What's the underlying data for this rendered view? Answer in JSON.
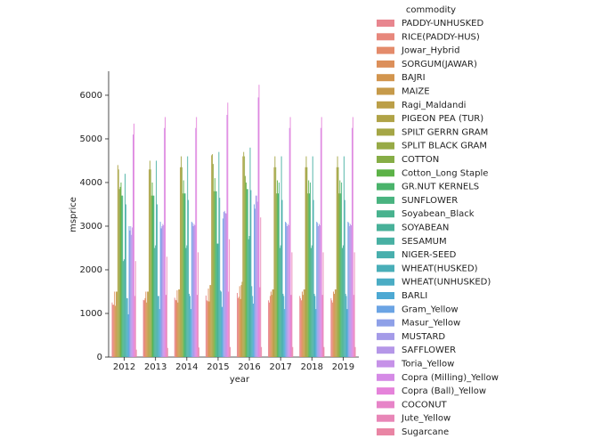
{
  "chart_data": {
    "type": "bar",
    "x_label": "year",
    "y_label": "msprice",
    "legend_title": "commodity",
    "legend_position": "right",
    "categories": [
      "2012",
      "2013",
      "2014",
      "2015",
      "2016",
      "2017",
      "2018",
      "2019"
    ],
    "ylim": [
      0,
      6550
    ],
    "yticks": [
      0,
      1000,
      2000,
      3000,
      4000,
      5000,
      6000
    ],
    "series": [
      {
        "name": "PADDY-UNHUSKED",
        "color": "#e8868f",
        "values": [
          1250,
          1310,
          1360,
          1410,
          1470,
          1300,
          1400,
          1350
        ]
      },
      {
        "name": "RICE(PADDY-HUS)",
        "color": "#e7877c",
        "values": [
          1200,
          1300,
          1310,
          1300,
          1350,
          1250,
          1350,
          1300
        ]
      },
      {
        "name": "Jowar_Hybrid",
        "color": "#e48b6b",
        "values": [
          1200,
          1350,
          1300,
          1280,
          1380,
          1400,
          1300,
          1250
        ]
      },
      {
        "name": "SORGUM(JAWAR)",
        "color": "#dc8f5a",
        "values": [
          1500,
          1500,
          1530,
          1570,
          1625,
          1500,
          1500,
          1500
        ]
      },
      {
        "name": "BAJRI",
        "color": "#d2954e",
        "values": [
          1175,
          1250,
          1250,
          1275,
          1330,
          1425,
          1425,
          1450
        ]
      },
      {
        "name": "MAIZE",
        "color": "#c69a4a",
        "values": [
          1500,
          1500,
          1550,
          1650,
          1650,
          1550,
          1550,
          1550
        ]
      },
      {
        "name": "Ragi_Maldandi",
        "color": "#bb9f48",
        "values": [
          1500,
          1500,
          1550,
          1650,
          1725,
          1550,
          1550,
          1550
        ]
      },
      {
        "name": "PIGEON PEA (TUR)",
        "color": "#b0a347",
        "values": [
          4400,
          4300,
          4350,
          4625,
          4600,
          4350,
          4350,
          4350
        ]
      },
      {
        "name": "SPILT GERRN GRAM",
        "color": "#a5a646",
        "values": [
          4300,
          4500,
          4600,
          4650,
          4700,
          4600,
          4600,
          4600
        ]
      },
      {
        "name": "SPLIT BLACK GRAM",
        "color": "#97aa46",
        "values": [
          3850,
          4300,
          4350,
          4425,
          4600,
          4350,
          4350,
          4350
        ]
      },
      {
        "name": "COTTON",
        "color": "#86ad46",
        "values": [
          3900,
          3700,
          3750,
          3800,
          4150,
          3750,
          3750,
          3750
        ]
      },
      {
        "name": "Cotton_Long Staple",
        "color": "#5cb247",
        "values": [
          4000,
          4000,
          4050,
          4100,
          4000,
          4050,
          4050,
          4050
        ]
      },
      {
        "name": "GR.NUT KERNELS",
        "color": "#4ab36b",
        "values": [
          3700,
          3700,
          3750,
          3800,
          3850,
          3750,
          3750,
          3750
        ]
      },
      {
        "name": "SUNFLOWER",
        "color": "#49b380",
        "values": [
          3700,
          3700,
          3750,
          3800,
          3850,
          4000,
          4000,
          4000
        ]
      },
      {
        "name": "Soyabean_Black",
        "color": "#48b28e",
        "values": [
          2200,
          2500,
          2500,
          2600,
          2700,
          2500,
          2500,
          2500
        ]
      },
      {
        "name": "SOYABEAN",
        "color": "#48b199",
        "values": [
          2240,
          2560,
          2560,
          2600,
          2775,
          2560,
          2560,
          2560
        ]
      },
      {
        "name": "SESAMUM",
        "color": "#48b0a3",
        "values": [
          4200,
          4500,
          4600,
          4700,
          4800,
          4600,
          4600,
          4600
        ]
      },
      {
        "name": "NIGER-SEED",
        "color": "#48afad",
        "values": [
          3500,
          3500,
          3600,
          3650,
          3825,
          3600,
          3600,
          3600
        ]
      },
      {
        "name": "WHEAT(HUSKED)",
        "color": "#49aeb8",
        "values": [
          1350,
          1400,
          1450,
          1525,
          1625,
          1450,
          1450,
          1450
        ]
      },
      {
        "name": "WHEAT(UNHUSKED)",
        "color": "#4aacc4",
        "values": [
          1350,
          1400,
          1400,
          1500,
          1400,
          1400,
          1400,
          1400
        ]
      },
      {
        "name": "BARLI",
        "color": "#4da9d3",
        "values": [
          980,
          1100,
          1100,
          1150,
          1225,
          1100,
          1100,
          1100
        ]
      },
      {
        "name": "Gram_Yellow",
        "color": "#6ba4e4",
        "values": [
          3000,
          3100,
          3100,
          3175,
          3500,
          3100,
          3100,
          3100
        ]
      },
      {
        "name": "Masur_Yellow",
        "color": "#8ea0e8",
        "values": [
          2900,
          2950,
          3075,
          3325,
          3400,
          3075,
          3075,
          3075
        ]
      },
      {
        "name": "MUSTARD",
        "color": "#a49be8",
        "values": [
          3000,
          3000,
          3000,
          3350,
          3700,
          3000,
          3000,
          3000
        ]
      },
      {
        "name": "SAFFLOWER",
        "color": "#b597e8",
        "values": [
          2800,
          3050,
          3050,
          3300,
          3700,
          3050,
          3050,
          3050
        ]
      },
      {
        "name": "Toria_Yellow",
        "color": "#c692e8",
        "values": [
          2970,
          3020,
          3020,
          3290,
          3560,
          3020,
          3020,
          3020
        ]
      },
      {
        "name": "Copra (Milling)_Yellow",
        "color": "#d58ae6",
        "values": [
          5100,
          5250,
          5250,
          5550,
          5950,
          5250,
          5250,
          5250
        ]
      },
      {
        "name": "Copra (Ball)_Yellow",
        "color": "#e583da",
        "values": [
          5350,
          5500,
          5500,
          5830,
          6240,
          5500,
          5500,
          5500
        ]
      },
      {
        "name": "COCONUT",
        "color": "#e784c8",
        "values": [
          1400,
          1425,
          1425,
          1500,
          1600,
          1425,
          1425,
          1425
        ]
      },
      {
        "name": "Jute_Yellow",
        "color": "#e886b7",
        "values": [
          2200,
          2300,
          2400,
          2700,
          3200,
          2400,
          2400,
          2400
        ]
      },
      {
        "name": "Sugarcane",
        "color": "#e985a4",
        "values": [
          170,
          210,
          220,
          230,
          230,
          230,
          230,
          230
        ]
      }
    ]
  }
}
